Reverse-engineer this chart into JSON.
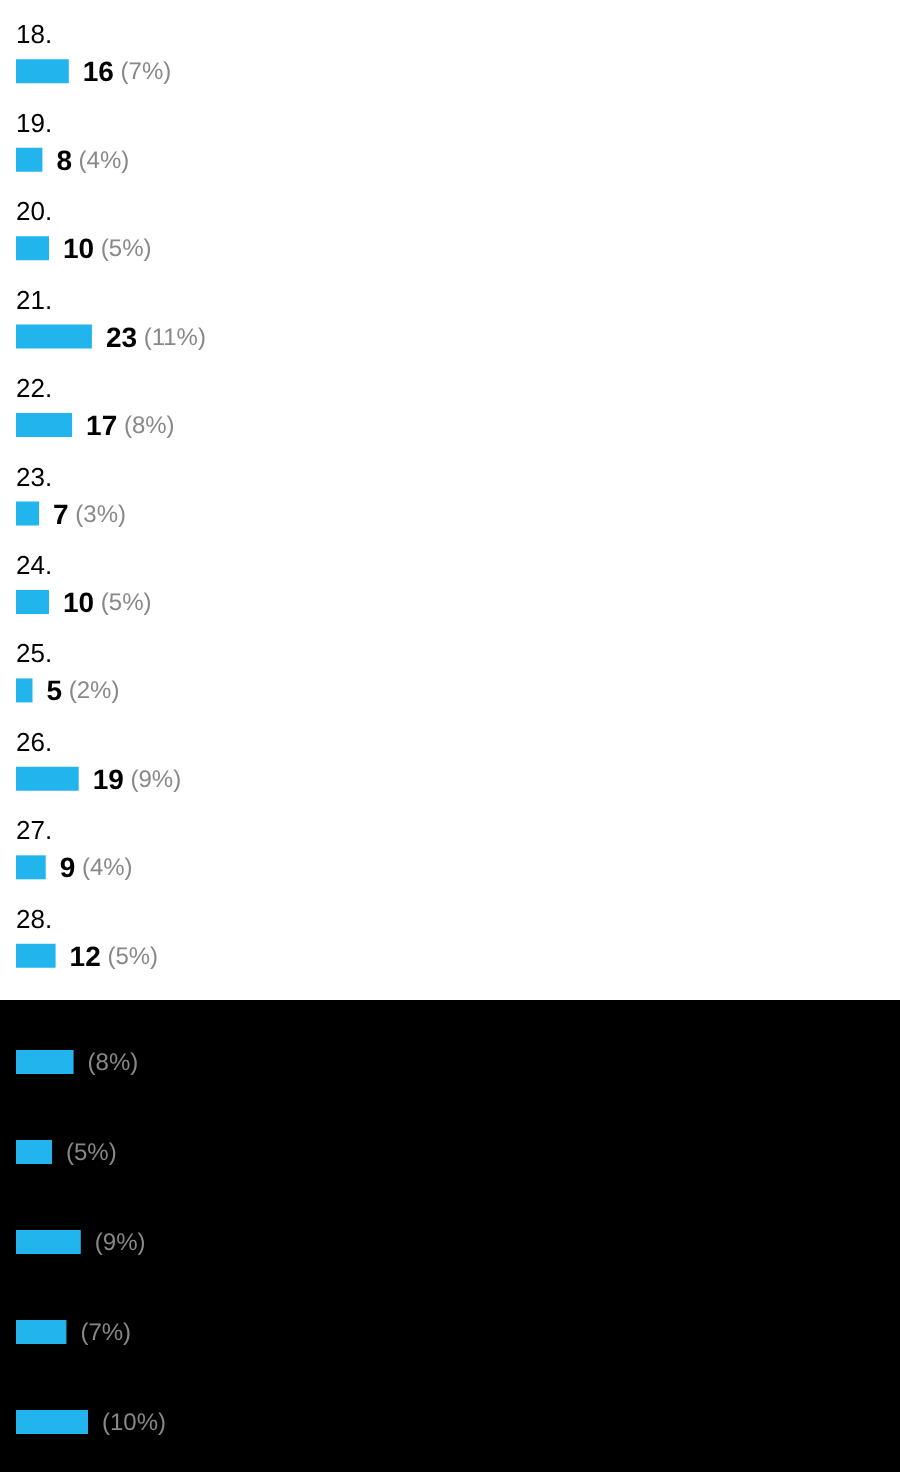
{
  "chart_data": [
    {
      "type": "bar",
      "orientation": "horizontal",
      "categories": [
        "18.",
        "19.",
        "20.",
        "21.",
        "22.",
        "23.",
        "24.",
        "25.",
        "26.",
        "27.",
        "28."
      ],
      "values": [
        16,
        8,
        10,
        23,
        17,
        7,
        10,
        5,
        19,
        9,
        12
      ],
      "value_labels": [
        "16 (7%)",
        "8 (4%)",
        "10 (5%)",
        "23 (11%)",
        "17 (8%)",
        "7 (3%)",
        "10 (5%)",
        "5 (2%)",
        "19 (9%)",
        "9 (4%)",
        "12 (5%)"
      ],
      "color": "#22b4ec",
      "tick_labels": "y"
    },
    {
      "type": "bar",
      "orientation": "horizontal",
      "categories": [
        null,
        null,
        null,
        null,
        null
      ],
      "values": [
        8,
        5,
        9,
        7,
        10
      ],
      "value_labels": [
        "(8%)",
        "(5%)",
        "(9%)",
        "(7%)",
        "(10%)"
      ],
      "color": "#22b4ec",
      "tick_labels": false
    }
  ]
}
